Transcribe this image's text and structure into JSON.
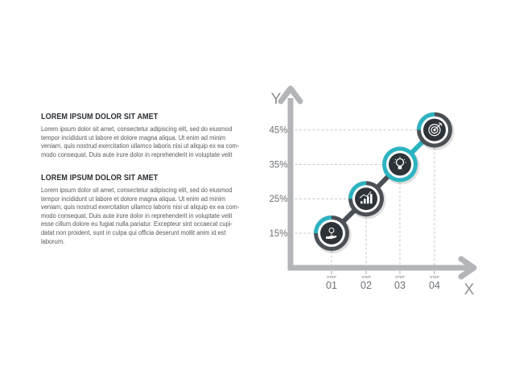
{
  "text_blocks": [
    {
      "heading": "LOREM IPSUM DOLOR SIT AMET",
      "lines": [
        "Lorem ipsum dolor sit amet, consectetur adipiscing elit, sed do eiusmod",
        "tempor incididunt ut labore et dolore magna aliqua. Ut enim ad minim",
        "veniam, quis nostrud exercitation ullamco laboris nisi ut aliquip ex ea com-",
        "modo consequat. Duis aute irure dolor in reprehenderit in voluptate velit"
      ]
    },
    {
      "heading": "LOREM IPSUM DOLOR SIT AMET",
      "lines": [
        "Lorem ipsum dolor sit amet, consectetur adipiscing elit, sed do eiusmod",
        "tempor incididunt ut labore et dolore magna aliqua. Ut enim ad minim",
        "veniam, quis nostrud exercitation ullamco laboris nisi ut aliquip ex ea com-",
        "modo consequat. Duis aute irure dolor in reprehenderit in voluptate velit",
        "esse cillum dolore eu fugiat nulla pariatur. Excepteur sint occaecat cupi-",
        "datat non proident, sunt in culpa qui officia deserunt mollit anim id est",
        "laborum."
      ]
    }
  ],
  "chart_data": {
    "type": "line",
    "x_axis_letter": "X",
    "y_axis_letter": "Y",
    "y_ticks": [
      "45%",
      "35%",
      "25%",
      "15%"
    ],
    "x_ticks": [
      {
        "word": "STEP",
        "number": "01"
      },
      {
        "word": "STEP",
        "number": "02"
      },
      {
        "word": "STEP",
        "number": "03"
      },
      {
        "word": "STEP",
        "number": "04"
      }
    ],
    "points": [
      {
        "x": "01",
        "y": 15,
        "icon": "hand-coin-icon"
      },
      {
        "x": "02",
        "y": 25,
        "icon": "growth-bar-chart-icon"
      },
      {
        "x": "03",
        "y": 35,
        "icon": "lightbulb-icon"
      },
      {
        "x": "04",
        "y": 45,
        "icon": "target-icon"
      }
    ],
    "grid": "dashed",
    "colors": {
      "axis": "#b3b5b8",
      "line_dark": "#4b5056",
      "line_accent": "#2bb3c0",
      "ring_dark": "#4b5056",
      "ring_accent": "#2bb3c0",
      "ring_inner": "#ffffff",
      "disk": "#2e3338",
      "icon": "#ffffff"
    }
  }
}
